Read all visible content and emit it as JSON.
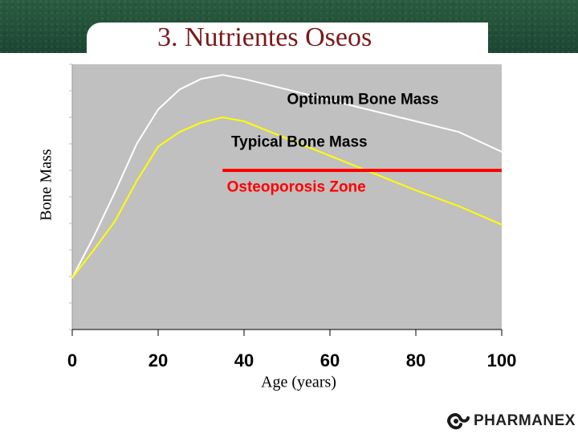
{
  "slide": {
    "title": "3.  Nutrientes Oseos",
    "logo_text": "PHARMANEX",
    "colors": {
      "band": "#1f4e36",
      "title": "#7a1a1a",
      "plot_bg": "#c0c0c0"
    }
  },
  "chart_data": {
    "type": "line",
    "title": "",
    "xlabel": "Age (years)",
    "ylabel": "Bone Mass",
    "xlim": [
      0,
      100
    ],
    "xticks": [
      0,
      20,
      40,
      60,
      80,
      100
    ],
    "grid": false,
    "series": [
      {
        "name": "Optimum Bone Mass",
        "color": "#ffffff",
        "x": [
          0,
          5,
          10,
          15,
          20,
          25,
          30,
          35,
          40,
          50,
          60,
          70,
          80,
          90,
          100
        ],
        "y": [
          0.195,
          0.35,
          0.52,
          0.7,
          0.83,
          0.905,
          0.945,
          0.96,
          0.945,
          0.905,
          0.865,
          0.825,
          0.785,
          0.745,
          0.67
        ]
      },
      {
        "name": "Typical Bone Mass",
        "color": "#ffff00",
        "x": [
          0,
          5,
          10,
          15,
          20,
          25,
          30,
          35,
          40,
          50,
          60,
          70,
          80,
          90,
          100
        ],
        "y": [
          0.195,
          0.3,
          0.41,
          0.56,
          0.69,
          0.745,
          0.78,
          0.8,
          0.785,
          0.72,
          0.655,
          0.59,
          0.525,
          0.465,
          0.395
        ]
      }
    ],
    "threshold": {
      "name": "Osteoporosis Zone",
      "color": "#ff0000",
      "x": [
        35,
        100
      ],
      "y": 0.6
    },
    "annotations": [
      {
        "text": "Optimum Bone Mass",
        "color": "#000000",
        "x": 50,
        "y": 0.85
      },
      {
        "text": "Typical Bone Mass",
        "color": "#000000",
        "x": 37,
        "y": 0.69
      },
      {
        "text": "Osteoporosis Zone",
        "color": "#ff0000",
        "x": 36,
        "y": 0.52
      }
    ]
  }
}
